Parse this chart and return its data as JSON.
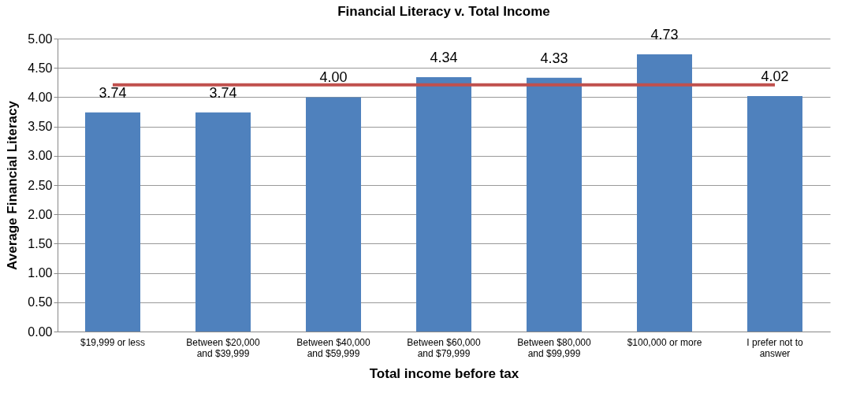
{
  "chart_data": {
    "type": "bar",
    "title": "Financial Literacy v. Total Income",
    "xlabel": "Total income before tax",
    "ylabel": "Average Financial Literacy",
    "categories": [
      "$19,999 or less",
      "Between $20,000 and $39,999",
      "Between $40,000 and $59,999",
      "Between $60,000 and $79,999",
      "Between $80,000 and $99,999",
      "$100,000 or more",
      "I prefer not to answer"
    ],
    "series": [
      {
        "color": "#4f81bd",
        "values": [
          3.74,
          3.74,
          4.0,
          4.34,
          4.33,
          4.73,
          4.02
        ],
        "value_labels": [
          "3.74",
          "3.74",
          "4.00",
          "4.34",
          "4.33",
          "4.73",
          "4.02"
        ]
      },
      {
        "type": "line",
        "color": "#c0504d",
        "values": [
          4.21,
          4.21,
          4.21,
          4.21,
          4.21,
          4.21,
          4.21
        ]
      }
    ],
    "ylim": [
      0,
      5
    ],
    "yticks": [
      {
        "value": 0,
        "label": "0.00"
      },
      {
        "value": 0.5,
        "label": "0.50"
      },
      {
        "value": 1,
        "label": "1.00"
      },
      {
        "value": 1.5,
        "label": "1.50"
      },
      {
        "value": 2,
        "label": "2.00"
      },
      {
        "value": 2.5,
        "label": "2.50"
      },
      {
        "value": 3,
        "label": "3.00"
      },
      {
        "value": 3.5,
        "label": "3.50"
      },
      {
        "value": 4,
        "label": "4.00"
      },
      {
        "value": 4.5,
        "label": "4.50"
      },
      {
        "value": 5,
        "label": "5.00"
      }
    ],
    "grid": "y",
    "marker": "none",
    "line_style": "solid"
  }
}
